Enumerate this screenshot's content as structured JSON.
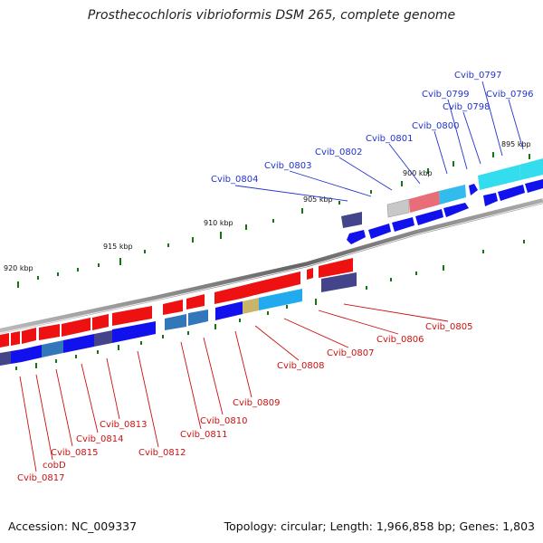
{
  "title": "Prosthecochloris vibrioformis DSM 265, complete genome",
  "footer": {
    "accession": "Accession: NC_009337",
    "topology": "Topology: circular; Length: 1,966,858 bp; Genes: 1,803"
  },
  "colors": {
    "forward_gene": "#ee1111",
    "reverse_gene": "#1111dd",
    "rna_gene": "#33ddee",
    "backbone": "#888888",
    "tick": "#117711",
    "upper_label": "#2233cc",
    "lower_label": "#cc1111"
  },
  "scale_labels": [
    "895 kbp",
    "900 kbp",
    "905 kbp",
    "910 kbp",
    "915 kbp",
    "920 kbp"
  ],
  "upper_genes": [
    "Cvib_0797",
    "Cvib_0799",
    "Cvib_0796",
    "Cvib_0798",
    "Cvib_0800",
    "Cvib_0801",
    "Cvib_0802",
    "Cvib_0803",
    "Cvib_0804"
  ],
  "lower_genes": [
    "Cvib_0805",
    "Cvib_0806",
    "Cvib_0807",
    "Cvib_0808",
    "Cvib_0809",
    "Cvib_0810",
    "Cvib_0811",
    "Cvib_0812",
    "Cvib_0813",
    "Cvib_0814",
    "Cvib_0815",
    "cobD",
    "Cvib_0817"
  ]
}
